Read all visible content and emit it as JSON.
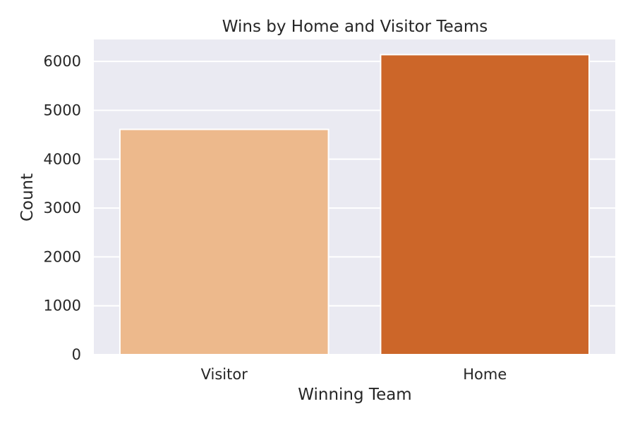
{
  "chart_data": {
    "type": "bar",
    "title": "Wins by Home and Visitor Teams",
    "xlabel": "Winning Team",
    "ylabel": "Count",
    "categories": [
      "Visitor",
      "Home"
    ],
    "values": [
      4610,
      6140
    ],
    "ylim": [
      0,
      6450
    ],
    "yticks": [
      0,
      1000,
      2000,
      3000,
      4000,
      5000,
      6000
    ],
    "grid": true,
    "legend": "none",
    "colors": {
      "plot_background": "#eaeaf2",
      "gridline": "#ffffff",
      "bars": [
        "#edb98c",
        "#cc6629"
      ],
      "text": "#262626"
    }
  }
}
